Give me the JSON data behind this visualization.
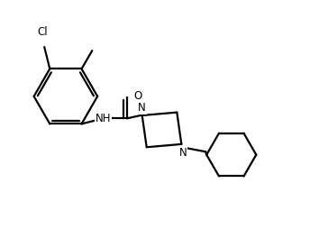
{
  "bg_color": "#ffffff",
  "line_color": "#000000",
  "line_width": 1.6,
  "figsize": [
    3.54,
    2.54
  ],
  "dpi": 100,
  "xlim": [
    0,
    10.5
  ],
  "ylim": [
    0,
    7.5
  ]
}
